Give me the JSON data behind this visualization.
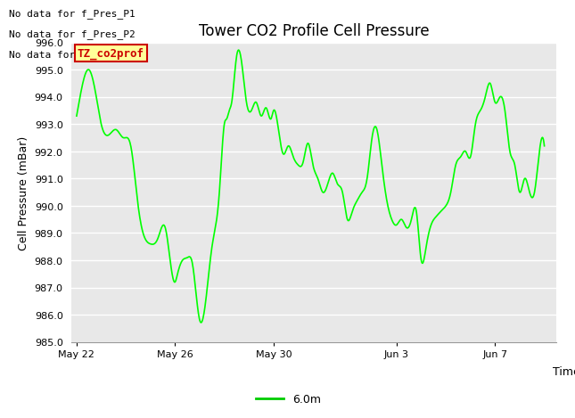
{
  "title": "Tower CO2 Profile Cell Pressure",
  "ylabel": "Cell Pressure (mBar)",
  "xlabel": "Time",
  "ylim": [
    985.0,
    996.0
  ],
  "yticks": [
    985.0,
    986.0,
    987.0,
    988.0,
    989.0,
    990.0,
    991.0,
    992.0,
    993.0,
    994.0,
    995.0,
    996.0
  ],
  "plot_bg_color": "#e8e8e8",
  "line_color": "#00ff00",
  "line_width": 1.2,
  "legend_label": "6.0m",
  "legend_line_color": "#00cc00",
  "no_data_texts": [
    "No data for f_Pres_P1",
    "No data for f_Pres_P2",
    "No data for f_Pres_P4"
  ],
  "tooltip_text": "TZ_co2prof",
  "tooltip_bg": "#ffff99",
  "tooltip_border": "#cc0000",
  "tooltip_text_color": "#cc0000",
  "x_tick_labels": [
    "May 22",
    "May 26",
    "May 30",
    "Jun 3",
    "Jun 7"
  ],
  "x_tick_positions": [
    0,
    4,
    8,
    13,
    17
  ],
  "title_fontsize": 12,
  "axis_label_fontsize": 9,
  "tick_fontsize": 8,
  "no_data_fontsize": 8,
  "tooltip_fontsize": 9,
  "legend_fontsize": 9,
  "t_control": [
    0,
    0.25,
    0.5,
    0.8,
    1.0,
    1.3,
    1.6,
    1.9,
    2.2,
    2.5,
    2.7,
    3.0,
    3.3,
    3.6,
    3.8,
    4.0,
    4.1,
    4.3,
    4.5,
    4.7,
    4.85,
    5.0,
    5.2,
    5.5,
    5.8,
    6.0,
    6.1,
    6.2,
    6.3,
    6.5,
    6.7,
    6.9,
    7.1,
    7.3,
    7.5,
    7.7,
    7.9,
    8.0,
    8.2,
    8.4,
    8.6,
    8.8,
    9.0,
    9.2,
    9.4,
    9.6,
    9.8,
    10.0,
    10.2,
    10.4,
    10.6,
    10.8,
    11.0,
    11.2,
    11.4,
    11.6,
    11.8,
    12.0,
    12.2,
    12.4,
    12.6,
    12.8,
    13.0,
    13.2,
    13.4,
    13.6,
    13.8,
    14.0,
    14.2,
    14.4,
    14.6,
    14.8,
    15.0,
    15.2,
    15.4,
    15.6,
    15.8,
    16.0,
    16.2,
    16.4,
    16.6,
    16.8,
    17.0,
    17.2,
    17.4,
    17.6,
    17.8,
    18.0,
    18.2,
    18.4,
    18.6,
    18.8,
    19.0
  ],
  "v_control": [
    993.3,
    994.5,
    995.0,
    994.0,
    993.0,
    992.6,
    992.8,
    992.5,
    992.2,
    990.0,
    989.0,
    988.6,
    988.8,
    989.2,
    988.0,
    987.2,
    987.5,
    988.0,
    988.1,
    987.9,
    986.8,
    985.8,
    986.2,
    988.5,
    990.5,
    993.0,
    993.2,
    993.5,
    993.8,
    995.5,
    995.3,
    993.8,
    993.5,
    993.8,
    993.3,
    993.6,
    993.2,
    993.5,
    992.8,
    991.9,
    992.2,
    991.8,
    991.5,
    991.6,
    992.3,
    991.5,
    991.0,
    990.5,
    990.8,
    991.2,
    990.8,
    990.5,
    989.5,
    989.8,
    990.2,
    990.5,
    991.0,
    992.5,
    992.8,
    991.5,
    990.2,
    989.5,
    989.3,
    989.5,
    989.2,
    989.5,
    989.8,
    988.0,
    988.5,
    989.3,
    989.6,
    989.8,
    990.0,
    990.5,
    991.5,
    991.8,
    992.0,
    991.8,
    993.0,
    993.5,
    994.0,
    994.5,
    993.8,
    994.0,
    993.5,
    992.0,
    991.5,
    990.5,
    991.0,
    990.5,
    990.5,
    992.0,
    992.2
  ]
}
